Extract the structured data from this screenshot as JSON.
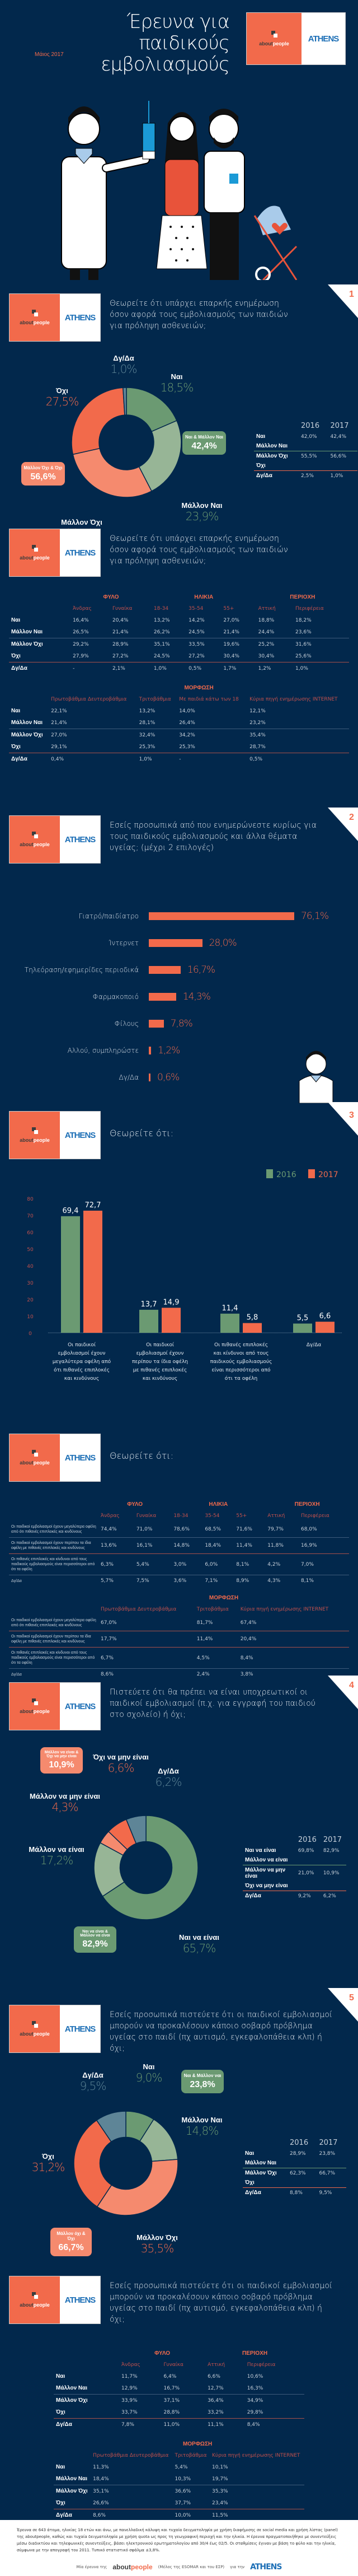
{
  "header": {
    "title_line1": "Έρευνα για παιδικούς",
    "title_line2": "εμβολιασμούς",
    "date": "Μάιος 2017"
  },
  "logo": {
    "about": "about",
    "people": "people",
    "athens": "ATHENS"
  },
  "colors": {
    "navy": "#02284c",
    "orange": "#f26a4b",
    "light_orange": "#f58a6e",
    "green": "#6b9a72",
    "light_green": "#97b596",
    "grey_blue": "#5e8597",
    "white": "#ffffff"
  },
  "q1": {
    "number": "1",
    "question": "Θεωρείτε ότι υπάρχει επαρκής ενημέρωση όσον αφορά τους εμβολιασμούς των παιδιών για πρόληψη ασθενειών;",
    "badge_yes": {
      "label": "Ναι & Μάλλον Ναι",
      "value": "42,4%"
    },
    "badge_no": {
      "label": "Μάλλον Όχι & Όχι",
      "value": "56,6%"
    },
    "compare": {
      "years": [
        "2016",
        "2017"
      ],
      "rows": [
        {
          "label": "Ναι",
          "v2016": "42,0%",
          "v2017": "42,4%"
        },
        {
          "label": "Μάλλον Ναι",
          "v2016": "",
          "v2017": ""
        },
        {
          "label": "Μάλλον Όχι",
          "v2016": "55,5%",
          "v2017": "56,6%"
        },
        {
          "label": "Όχι",
          "v2016": "",
          "v2017": ""
        },
        {
          "label": "Δγ/Δα",
          "v2016": "2,5%",
          "v2017": "1,0%"
        }
      ]
    }
  },
  "q1_breakdown": {
    "question": "Θεωρείτε ότι υπάρχει επαρκής ενημέρωση όσον αφορά τους εμβολιασμούς των παιδιών για πρόληψη ασθενειών;",
    "groups": [
      "ΦΥΛΟ",
      "ΗΛΙΚΙΑ",
      "ΠΕΡΙΟΧΗ"
    ],
    "columns": [
      "Άνδρας",
      "Γυναίκα",
      "18-34",
      "35-54",
      "55+",
      "Αττική",
      "Περιφέρεια"
    ],
    "rows": [
      {
        "label": "Ναι",
        "values": [
          "16,4%",
          "20,4%",
          "13,2%",
          "14,2%",
          "27,0%",
          "18,8%",
          "18,2%"
        ]
      },
      {
        "label": "Μάλλον Ναι",
        "values": [
          "26,5%",
          "21,4%",
          "26,2%",
          "24,5%",
          "21,4%",
          "24,4%",
          "23,6%"
        ]
      },
      {
        "label": "Μάλλον Όχι",
        "values": [
          "29,2%",
          "28,9%",
          "35,1%",
          "33,5%",
          "19,6%",
          "25,2%",
          "31,6%"
        ]
      },
      {
        "label": "Όχι",
        "values": [
          "27,9%",
          "27,2%",
          "24,5%",
          "27,2%",
          "30,4%",
          "30,4%",
          "25,6%"
        ]
      },
      {
        "label": "Δγ/Δα",
        "values": [
          "-",
          "2,1%",
          "1,0%",
          "0,5%",
          "1,7%",
          "1,2%",
          "1,0%"
        ]
      }
    ],
    "edu_group": "ΜΟΡΦΩΣΗ",
    "edu_columns": [
      "Πρωτοβάθμια Δευτεροβάθμια",
      "Τριτοβάθμια",
      "Με παιδιά κάτω των 18",
      "Κύρια πηγή ενημέρωσης INTERNET"
    ],
    "edu_rows": [
      {
        "label": "Ναι",
        "values": [
          "22,1%",
          "13,2%",
          "14,0%",
          "12,1%"
        ]
      },
      {
        "label": "Μάλλον Ναι",
        "values": [
          "21,4%",
          "28,1%",
          "26,4%",
          "23,2%"
        ]
      },
      {
        "label": "Μάλλον Όχι",
        "values": [
          "27,0%",
          "32,4%",
          "34,2%",
          "35,4%"
        ]
      },
      {
        "label": "Όχι",
        "values": [
          "29,1%",
          "25,3%",
          "25,3%",
          "28,7%"
        ]
      },
      {
        "label": "Δγ/Δα",
        "values": [
          "0,4%",
          "1,0%",
          "-",
          "0,5%"
        ]
      }
    ]
  },
  "q2": {
    "number": "2",
    "question": "Εσείς προσωπικά από που ενημερώνεστε κυρίως για τους παιδικούς εμβολιασμούς και άλλα θέματα υγείας; (μέχρι 2 επιλογές)"
  },
  "q3": {
    "number": "3",
    "question": "Θεωρείτε ότι:",
    "legend": [
      "2016",
      "2017"
    ]
  },
  "q3_breakdown": {
    "question": "Θεωρείτε ότι:",
    "groups": [
      "ΦΥΛΟ",
      "ΗΛΙΚΙΑ",
      "ΠΕΡΙΟΧΗ"
    ],
    "columns": [
      "Άνδρας",
      "Γυναίκα",
      "18-34",
      "35-54",
      "55+",
      "Αττική",
      "Περιφέρεια"
    ],
    "rows": [
      {
        "label": "Οι παιδικοί εμβολιασμοί έχουν μεγαλύτερα οφέλη από ότι πιθανές επιπλοκές και κινδύνους",
        "values": [
          "74,4%",
          "71,0%",
          "78,6%",
          "68,5%",
          "71,6%",
          "79,7%",
          "68,0%"
        ]
      },
      {
        "label": "Οι παιδικοί εμβολιασμοί έχουν περίπου τα ίδια οφέλη με πιθανές επιπλοκές και κινδύνους",
        "values": [
          "13,6%",
          "16,1%",
          "14,8%",
          "18,4%",
          "11,4%",
          "11,8%",
          "16,9%"
        ]
      },
      {
        "label": "Οι πιθανές επιπλοκές και κίνδυνοι από τους παιδικούς εμβολιασμούς είναι περισσότεροι από ότι τα οφέλη",
        "values": [
          "6,3%",
          "5,4%",
          "3,0%",
          "6,0%",
          "8,1%",
          "4,2%",
          "7,0%"
        ]
      },
      {
        "label": "Δγ/Δα",
        "values": [
          "5,7%",
          "7,5%",
          "3,6%",
          "7,1%",
          "8,9%",
          "4,3%",
          "8,1%"
        ]
      }
    ],
    "edu_group": "ΜΟΡΦΩΣΗ",
    "edu_columns": [
      "Πρωτοβάθμια Δευτεροβάθμια",
      "Τριτοβάθμια",
      "Κύρια πηγή ενημέρωσης INTERNET"
    ],
    "edu_rows": [
      {
        "label": "Οι παιδικοί εμβολιασμοί έχουν μεγαλύτερα οφέλη από ότι πιθανές επιπλοκές και κινδύνους",
        "values": [
          "67,0%",
          "81,7%",
          "67,4%"
        ]
      },
      {
        "label": "Οι παιδικοί εμβολιασμοί έχουν περίπου τα ίδια οφέλη με πιθανές επιπλοκές και κινδύνους",
        "values": [
          "17,7%",
          "11,4%",
          "20,4%"
        ]
      },
      {
        "label": "Οι πιθανές επιπλοκές και κίνδυνοι από τους παιδικούς εμβολιασμούς είναι περισσότεροι από ότι τα οφέλη",
        "values": [
          "6,7%",
          "4,5%",
          "8,4%"
        ]
      },
      {
        "label": "Δγ/Δα",
        "values": [
          "8,6%",
          "2,4%",
          "3,8%"
        ]
      }
    ]
  },
  "q4": {
    "number": "4",
    "question": "Πιστεύετε ότι θα πρέπει να είναι υποχρεωτικοί οι παιδικοί εμβολιασμοί (π.χ. για εγγραφή του παιδιού στο σχολείο) ή όχι;",
    "badge_no": {
      "label": "Μάλλον να είναι & Όχι να μην είναι",
      "value": "10,9%"
    },
    "badge_yes": {
      "label": "Ναι να είναι & Μάλλον να είναι",
      "value": "82,9%"
    },
    "compare": {
      "years": [
        "2016",
        "2017"
      ],
      "rows": [
        {
          "label": "Ναι να είναι",
          "v2016": "69,8%",
          "v2017": "82,9%"
        },
        {
          "label": "Μάλλον να είναι",
          "v2016": "",
          "v2017": ""
        },
        {
          "label": "Μάλλον να μην είναι",
          "v2016": "21,0%",
          "v2017": "10,9%"
        },
        {
          "label": "Όχι να μην είναι",
          "v2016": "",
          "v2017": ""
        },
        {
          "label": "Δγ/Δα",
          "v2016": "9,2%",
          "v2017": "6,2%"
        }
      ]
    }
  },
  "q5": {
    "number": "5",
    "question": "Εσείς προσωπικά πιστεύετε ότι οι παιδικοί εμβολιασμοί μπορούν να προκαλέσουν κάποιο σοβαρό πρόβλημα υγείας στο παιδί (πχ αυτισμό, εγκεφαλοπάθεια κλπ) ή όχι;",
    "badge_yes": {
      "label": "Ναι & Μάλλον ναι",
      "value": "23,8%"
    },
    "badge_no": {
      "label": "Μάλλον όχι & Όχι",
      "value": "66,7%"
    },
    "compare": {
      "years": [
        "2016",
        "2017"
      ],
      "rows": [
        {
          "label": "Ναι",
          "v2016": "28,9%",
          "v2017": "23,8%"
        },
        {
          "label": "Μάλλον Ναι",
          "v2016": "",
          "v2017": ""
        },
        {
          "label": "Μάλλον Όχι",
          "v2016": "62,3%",
          "v2017": "66,7%"
        },
        {
          "label": "Όχι",
          "v2016": "",
          "v2017": ""
        },
        {
          "label": "Δγ/Δα",
          "v2016": "8,8%",
          "v2017": "9,5%"
        }
      ]
    }
  },
  "q5_breakdown": {
    "question": "Εσείς προσωπικά πιστεύετε ότι οι παιδικοί εμβολιασμοί μπορούν να προκαλέσουν κάποιο σοβαρό πρόβλημα υγείας στο παιδί (πχ αυτισμό, εγκεφαλοπάθεια κλπ) ή όχι;",
    "groups": [
      "ΦΥΛΟ",
      "ΠΕΡΙΟΧΗ"
    ],
    "columns": [
      "Άνδρας",
      "Γυναίκα",
      "Αττική",
      "Περιφέρεια"
    ],
    "rows": [
      {
        "label": "Ναι",
        "values": [
          "11,7%",
          "6,4%",
          "6,6%",
          "10,6%"
        ]
      },
      {
        "label": "Μάλλον Ναι",
        "values": [
          "12,9%",
          "16,7%",
          "12,7%",
          "16,3%"
        ]
      },
      {
        "label": "Μάλλον Όχι",
        "values": [
          "33,9%",
          "37,1%",
          "36,4%",
          "34,9%"
        ]
      },
      {
        "label": "Όχι",
        "values": [
          "33,7%",
          "28,8%",
          "33,2%",
          "29,8%"
        ]
      },
      {
        "label": "Δγ/Δα",
        "values": [
          "7,8%",
          "11,0%",
          "11,1%",
          "8,4%"
        ]
      }
    ],
    "edu_group": "ΜΟΡΦΩΣΗ",
    "edu_columns": [
      "Πρωτοβάθμια Δευτεροβάθμια",
      "Τριτοβάθμια",
      "Κύρια πηγή ενημέρωσης INTERNET"
    ],
    "edu_rows": [
      {
        "label": "Ναι",
        "values": [
          "11,3%",
          "5,4%",
          "10,1%"
        ]
      },
      {
        "label": "Μάλλον Ναι",
        "values": [
          "18,4%",
          "10,3%",
          "19,7%"
        ]
      },
      {
        "label": "Μάλλον Όχι",
        "values": [
          "35,1%",
          "36,6%",
          "35,3%"
        ]
      },
      {
        "label": "Όχι",
        "values": [
          "26,6%",
          "37,7%",
          "23,4%"
        ]
      },
      {
        "label": "Δγ/Δα",
        "values": [
          "8,6%",
          "10,0%",
          "11,5%"
        ]
      }
    ]
  },
  "footer": {
    "methodology": "Έρευνα σε 643 άτομα, ηλικίας 18 ετών και άνω, με πανελλαδική κάλυψη και τυχαία δειγματοληψία με χρήση διαφήμισης σε social media και χρήση λίστας (panel) της aboutpeople, καθώς και τυχαία δειγματοληψία με χρήση quota ως προς τη γεωγραφική περιοχή και την ηλικία. Η έρευνα πραγματοποιήθηκε με συνεντεύξεις μέσω διαδικτύου και τηλεφωνικές συνεντεύξεις, βάσει ηλεκτρονικού ερωτηματολογίου από 30/4 έως 02/5. Οι σταθμίσεις έγιναν με βάση το φύλο και την ηλικία, σύμφωνα με την απογραφή του 2011. Τυπικό στατιστικό σφάλμα ±3,8%.",
    "credit_pre": "Μία έρευνα της",
    "credit_mid": "(Μέλος της ESOMAR και του ΕΣΡ)",
    "credit_post": "για την"
  },
  "chart_data": [
    {
      "type": "pie",
      "title": "Θεωρείτε ότι υπάρχει επαρκής ενημέρωση όσον αφορά τους εμβολιασμούς των παιδιών για πρόληψη ασθενειών;",
      "categories": [
        "Ναι",
        "Μάλλον Ναι",
        "Μάλλον Όχι",
        "Όχι",
        "Δγ/Δα"
      ],
      "values": [
        18.5,
        23.9,
        29.1,
        27.5,
        1.0
      ],
      "labels": [
        "18,5%",
        "23,9%",
        "29,1%",
        "27,5%",
        "1,0%"
      ],
      "colors": [
        "#6b9a72",
        "#97b596",
        "#f58a6e",
        "#f26a4b",
        "#5e8597"
      ],
      "donut": true
    },
    {
      "type": "bar",
      "orientation": "horizontal",
      "title": "Εσείς προσωπικά από που ενημερώνεστε κυρίως για τους παιδικούς εμβολιασμούς και άλλα θέματα υγείας; (μέχρι 2 επιλογές)",
      "categories": [
        "Γιατρό/παιδίατρο",
        "Ίντερνετ",
        "Τηλεόραση/εφημερίδες περιοδικά",
        "Φαρμακοποιό",
        "Φίλους",
        "Αλλού, συμπληρώστε",
        "Δγ/Δα"
      ],
      "values": [
        76.1,
        28.0,
        16.7,
        14.3,
        7.8,
        1.2,
        0.6
      ],
      "labels": [
        "76,1%",
        "28,0%",
        "16,7%",
        "14,3%",
        "7,8%",
        "1,2%",
        "0,6%"
      ],
      "color": "#f26a4b"
    },
    {
      "type": "bar",
      "title": "Θεωρείτε ότι:",
      "categories": [
        "Οι παιδικοί εμβολιασμοί έχουν μεγαλύτερα οφέλη από ότι πιθανές επιπλοκές και κινδύνους",
        "Οι παιδικοί εμβολιασμοί έχουν περίπου τα ίδια οφέλη με πιθανές επιπλοκές και κινδύνους",
        "Οι πιθανές επιπλοκές και κίνδυνοι από τους παιδικούς εμβολιασμούς είναι περισσότεροι από ότι τα οφέλη",
        "Δγ/Δα"
      ],
      "series": [
        {
          "name": "2016",
          "values": [
            69.4,
            13.7,
            11.4,
            5.5
          ],
          "labels": [
            "69,4",
            "13,7",
            "11,4",
            "5,5"
          ],
          "color": "#6b9a72"
        },
        {
          "name": "2017",
          "values": [
            72.7,
            14.9,
            5.8,
            6.6
          ],
          "labels": [
            "72,7",
            "14,9",
            "5,8",
            "6,6"
          ],
          "color": "#f26a4b"
        }
      ],
      "yticks": [
        0,
        10,
        20,
        30,
        40,
        50,
        60,
        70,
        80
      ],
      "ylim": [
        0,
        80
      ],
      "legend": "top-right",
      "grid": false
    },
    {
      "type": "pie",
      "title": "Πιστεύετε ότι θα πρέπει να είναι υποχρεωτικοί οι παιδικοί εμβολιασμοί (π.χ. για εγγραφή του παιδιού στο σχολείο) ή όχι;",
      "categories": [
        "Ναι να είναι",
        "Μάλλον να είναι",
        "Μάλλον να μην είναι",
        "Όχι να μην είναι",
        "Δγ/Δα"
      ],
      "values": [
        65.7,
        17.2,
        4.3,
        6.6,
        6.2
      ],
      "labels": [
        "65,7%",
        "17,2%",
        "4,3%",
        "6,6%",
        "6,2%"
      ],
      "colors": [
        "#6b9a72",
        "#97b596",
        "#f58a6e",
        "#f26a4b",
        "#5e8597"
      ],
      "donut": true
    },
    {
      "type": "pie",
      "title": "Εσείς προσωπικά πιστεύετε ότι οι παιδικοί εμβολιασμοί μπορούν να προκαλέσουν κάποιο σοβαρό πρόβλημα υγείας στο παιδί (πχ αυτισμό, εγκεφαλοπάθεια κλπ) ή όχι;",
      "categories": [
        "Ναι",
        "Μάλλον Ναι",
        "Μάλλον Όχι",
        "Όχι",
        "Δγ/Δα"
      ],
      "values": [
        9.0,
        14.8,
        35.5,
        31.2,
        9.5
      ],
      "labels": [
        "9,0%",
        "14,8%",
        "35,5%",
        "31,2%",
        "9,5%"
      ],
      "colors": [
        "#6b9a72",
        "#97b596",
        "#f58a6e",
        "#f26a4b",
        "#5e8597"
      ],
      "donut": true
    }
  ]
}
